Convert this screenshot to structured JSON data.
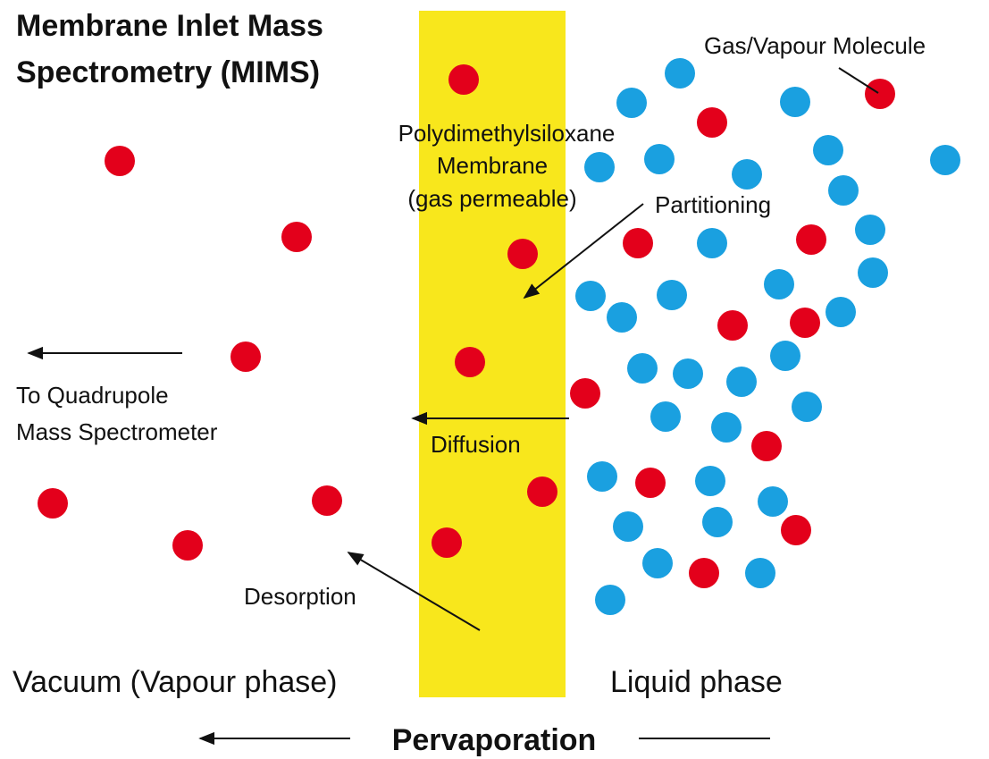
{
  "title": [
    "Membrane Inlet Mass",
    "Spectrometry (MIMS)"
  ],
  "membrane_label": [
    "Polydimethylsiloxane",
    "Membrane",
    "(gas permeable)"
  ],
  "molecule_label": "Gas/Vapour Molecule",
  "partitioning": "Partitioning",
  "diffusion": "Diffusion",
  "desorption": "Desorption",
  "outlet_label": [
    "To Quadrupole",
    "Mass Spectrometer"
  ],
  "vacuum_label": "Vacuum (Vapour phase)",
  "liquid_label": "Liquid phase",
  "process_label": "Pervaporation"
}
